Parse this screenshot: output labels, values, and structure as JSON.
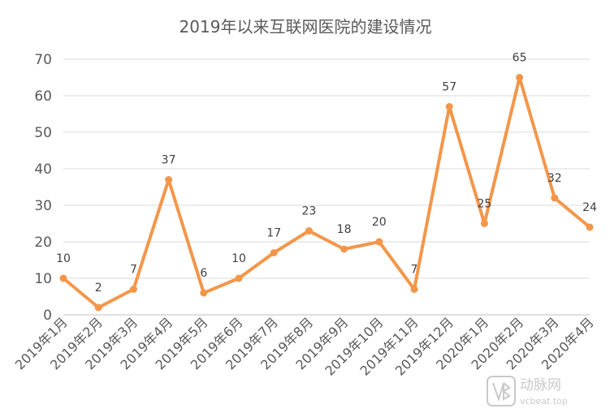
{
  "chart_data": {
    "type": "line",
    "title": "2019年以来互联网医院的建设情况",
    "xlabel": "",
    "ylabel": "",
    "categories": [
      "2019年1月",
      "2019年2月",
      "2019年3月",
      "2019年4月",
      "2019年5月",
      "2019年6月",
      "2019年7月",
      "2019年8月",
      "2019年9月",
      "2019年10月",
      "2019年11月",
      "2019年12月",
      "2020年1月",
      "2020年2月",
      "2020年3月",
      "2020年4月"
    ],
    "series": [
      {
        "values": [
          10,
          2,
          7,
          37,
          6,
          10,
          17,
          23,
          18,
          20,
          7,
          57,
          25,
          65,
          32,
          24
        ]
      }
    ],
    "ylim": [
      0,
      70
    ],
    "yticks": [
      0,
      10,
      20,
      30,
      40,
      50,
      60,
      70
    ],
    "grid": true,
    "legend": "none",
    "color": "#f4964a"
  },
  "watermark": {
    "icon": "vb-logo-icon",
    "text": "动脉网",
    "sub": "vcbeat.top"
  }
}
